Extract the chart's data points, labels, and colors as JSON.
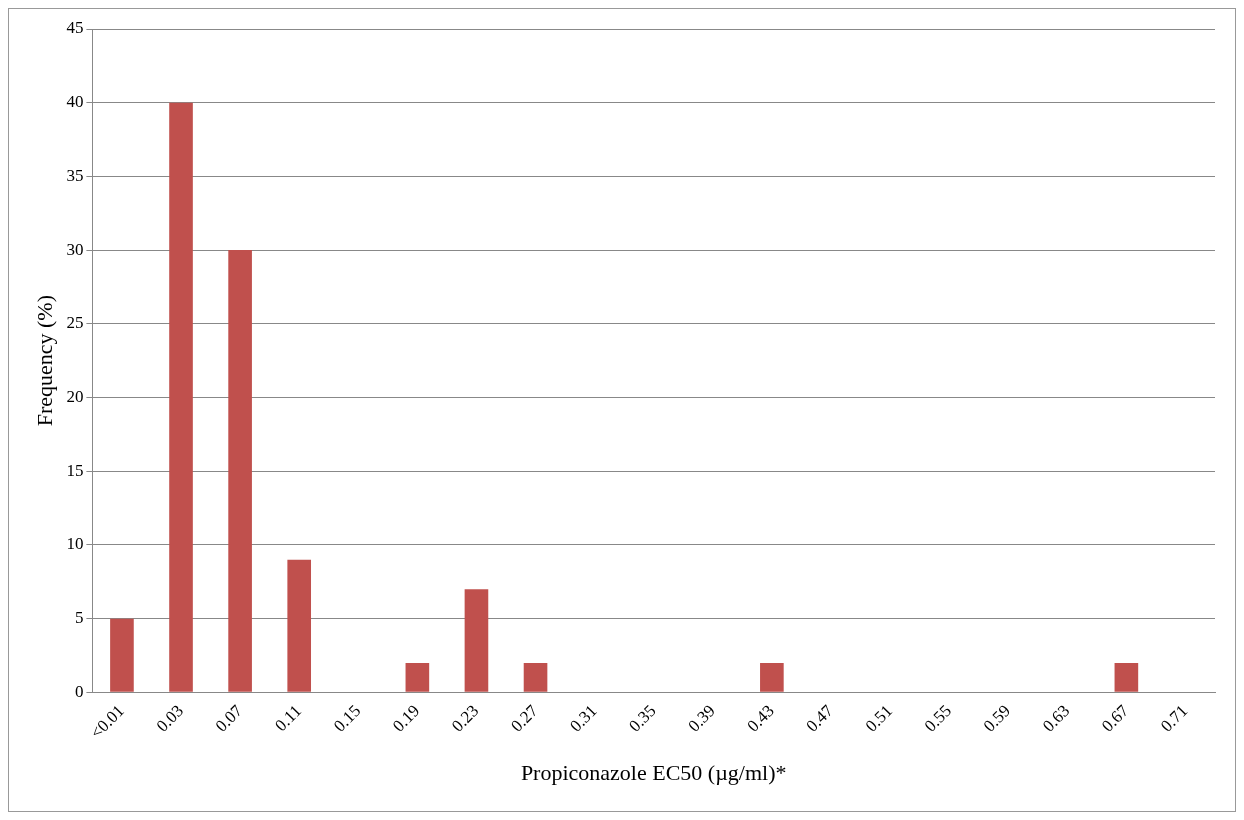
{
  "chart_data": {
    "type": "bar",
    "xlabel": "Propiconazole EC50 (µg/ml)*",
    "ylabel": "Frequency (%)",
    "categories": [
      "<0.01",
      "0.03",
      "0.07",
      "0.11",
      "0.15",
      "0.19",
      "0.23",
      "0.27",
      "0.31",
      "0.35",
      "0.39",
      "0.43",
      "0.47",
      "0.51",
      "0.55",
      "0.59",
      "0.63",
      "0.67",
      "0.71"
    ],
    "values": [
      5,
      40,
      30,
      9,
      0,
      2,
      7,
      2,
      0,
      0,
      0,
      2,
      0,
      0,
      0,
      0,
      0,
      2,
      0
    ],
    "color": "#c0504d",
    "ylim": [
      0,
      45
    ],
    "yticks": [
      0,
      5,
      10,
      15,
      20,
      25,
      30,
      35,
      40,
      45
    ],
    "grid": "y",
    "legend": false
  }
}
